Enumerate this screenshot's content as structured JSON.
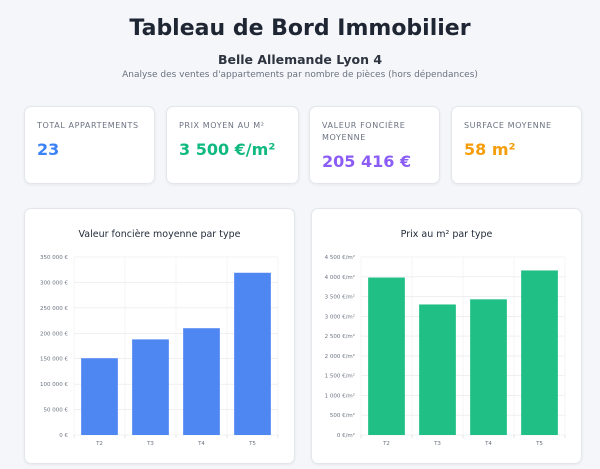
{
  "header": {
    "title": "Tableau de Bord Immobilier",
    "subtitle": "Belle Allemande Lyon 4",
    "description": "Analyse des ventes d'appartements par nombre de pièces (hors dépendances)"
  },
  "kpis": [
    {
      "label": "TOTAL APPARTEMENTS",
      "value": "23",
      "color": "#3b82f6"
    },
    {
      "label": "PRIX MOYEN AU M²",
      "value": "3 500 €/m²",
      "color": "#10b981"
    },
    {
      "label": "VALEUR FONCIÈRE MOYENNE",
      "value": "205 416 €",
      "color": "#8b5cf6"
    },
    {
      "label": "SURFACE MOYENNE",
      "value": "58 m²",
      "color": "#f59e0b"
    }
  ],
  "chart_data": [
    {
      "type": "bar",
      "title": "Valeur foncière moyenne par type",
      "categories": [
        "T2",
        "T3",
        "T4",
        "T5"
      ],
      "values": [
        151000,
        188000,
        210000,
        319000
      ],
      "ylim": [
        0,
        350000
      ],
      "yticks": [
        0,
        50000,
        100000,
        150000,
        200000,
        250000,
        300000,
        350000
      ],
      "yticklabels": [
        "0 €",
        "50 000 €",
        "100 000 €",
        "150 000 €",
        "200 000 €",
        "250 000 €",
        "300 000 €",
        "350 000 €"
      ],
      "color": "#4f87f2",
      "grid": true
    },
    {
      "type": "bar",
      "title": "Prix au m² par type",
      "categories": [
        "T2",
        "T3",
        "T4",
        "T5"
      ],
      "values": [
        3980,
        3300,
        3430,
        4160
      ],
      "ylim": [
        0,
        4500
      ],
      "yticks": [
        0,
        500,
        1000,
        1500,
        2000,
        2500,
        3000,
        3500,
        4000,
        4500
      ],
      "yticklabels": [
        "0 €/m²",
        "500 €/m²",
        "1 000 €/m²",
        "1 500 €/m²",
        "2 000 €/m²",
        "2 500 €/m²",
        "3 000 €/m²",
        "3 500 €/m²",
        "4 000 €/m²",
        "4 500 €/m²"
      ],
      "color": "#1fbf86",
      "grid": true
    }
  ]
}
